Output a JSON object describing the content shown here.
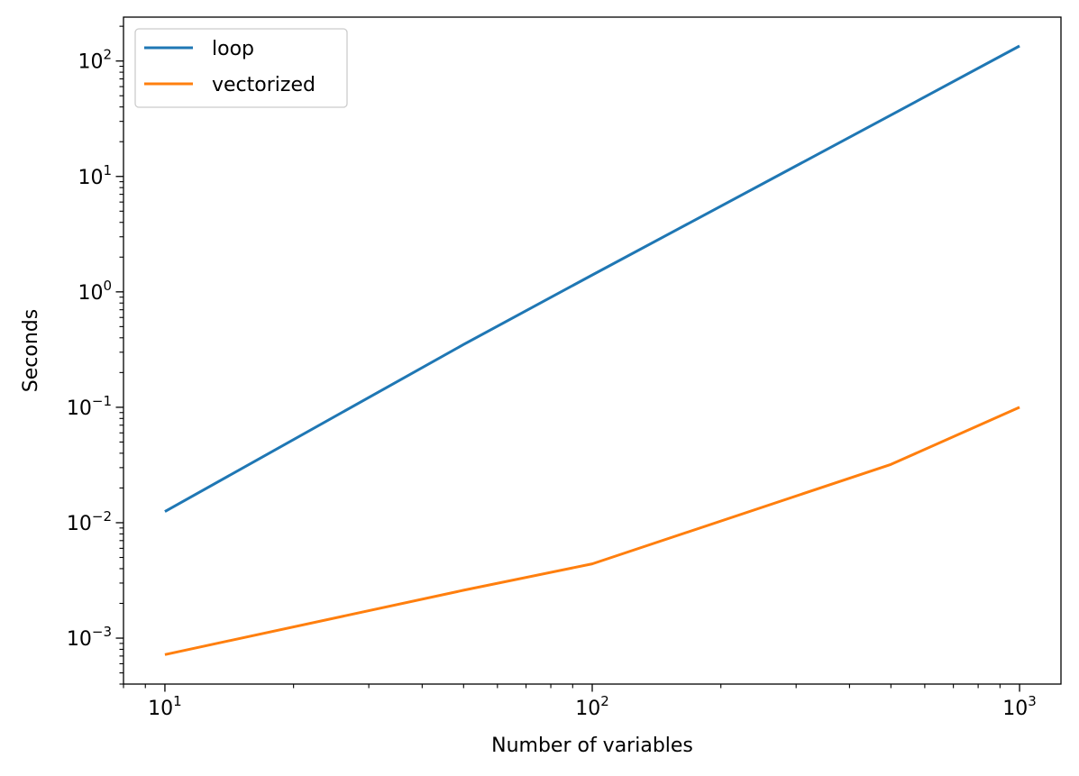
{
  "chart_data": {
    "type": "line",
    "xscale": "log",
    "yscale": "log",
    "xlabel": "Number of variables",
    "ylabel": "Seconds",
    "xlim": [
      8,
      1250
    ],
    "ylim": [
      0.0004,
      240
    ],
    "x_ticks": [
      {
        "value": 10,
        "base": "10",
        "exp": "1"
      },
      {
        "value": 100,
        "base": "10",
        "exp": "2"
      },
      {
        "value": 1000,
        "base": "10",
        "exp": "3"
      }
    ],
    "y_ticks": [
      {
        "value": 0.001,
        "base": "10",
        "exp": "−3"
      },
      {
        "value": 0.01,
        "base": "10",
        "exp": "−2"
      },
      {
        "value": 0.1,
        "base": "10",
        "exp": "−1"
      },
      {
        "value": 1,
        "base": "10",
        "exp": "0"
      },
      {
        "value": 10,
        "base": "10",
        "exp": "1"
      },
      {
        "value": 100,
        "base": "10",
        "exp": "2"
      }
    ],
    "legend_position": "top-left",
    "grid": false,
    "series": [
      {
        "name": "loop",
        "color": "#1f77b4",
        "x": [
          10,
          50,
          100,
          500,
          1000
        ],
        "y": [
          0.0125,
          0.35,
          1.4,
          34,
          135
        ]
      },
      {
        "name": "vectorized",
        "color": "#ff7f0e",
        "x": [
          10,
          50,
          100,
          500,
          1000
        ],
        "y": [
          0.00072,
          0.0026,
          0.0044,
          0.032,
          0.1
        ]
      }
    ]
  }
}
